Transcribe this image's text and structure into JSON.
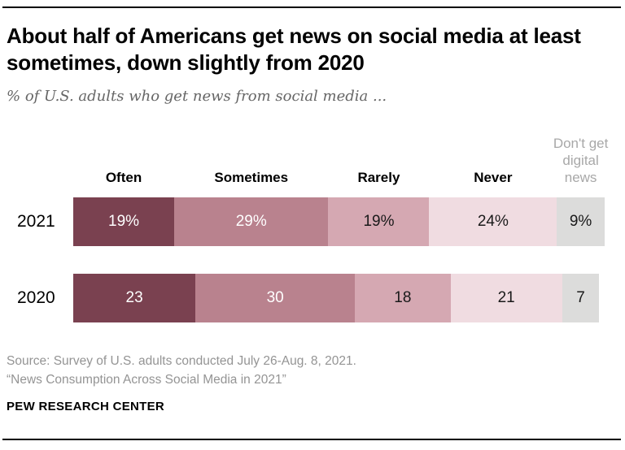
{
  "page": {
    "title_lines": [
      "About half of Americans get news on social media at",
      "least sometimes, down slightly from 2020"
    ],
    "subtitle": "% of U.S. adults who get news from social media ...",
    "source_lines": [
      "Source: Survey of U.S. adults conducted July 26-Aug. 8, 2021.",
      "“News Consumption Across Social Media in 2021”"
    ],
    "brand": "PEW RESEARCH CENTER"
  },
  "chart_data": {
    "type": "bar",
    "variant": "horizontal-stacked",
    "unit": "% of U.S. adults",
    "title": "About half of Americans get news on social media at least sometimes, down slightly from 2020",
    "categories": [
      "Often",
      "Sometimes",
      "Rarely",
      "Never",
      "Don't get digital news"
    ],
    "series": [
      {
        "name": "2021",
        "values": [
          19,
          29,
          19,
          24,
          9
        ],
        "labels": [
          "19%",
          "29%",
          "19%",
          "24%",
          "9%"
        ]
      },
      {
        "name": "2020",
        "values": [
          23,
          30,
          18,
          21,
          7
        ],
        "labels": [
          "23",
          "30",
          "18",
          "21",
          "7"
        ]
      }
    ],
    "axis_max": 100,
    "grid": false,
    "legend_position": "top",
    "colors": [
      "#7a4150",
      "#b9828e",
      "#d5a8b2",
      "#f0dce1",
      "#dcdcdb"
    ],
    "value_label_colors": [
      "#ffffff",
      "#ffffff",
      "#1a1a1a",
      "#1a1a1a",
      "#1a1a1a"
    ],
    "category_header_colors": [
      "#000000",
      "#000000",
      "#000000",
      "#000000",
      "#a8a8a8"
    ]
  }
}
